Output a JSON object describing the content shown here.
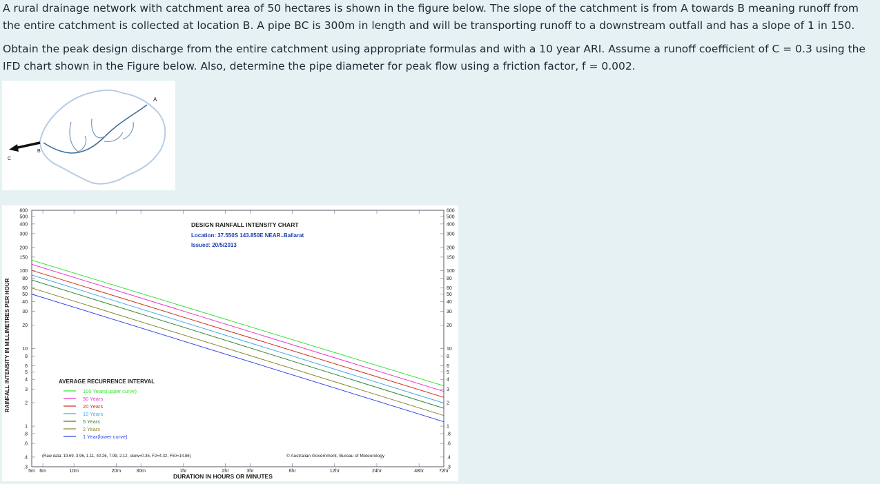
{
  "problem": {
    "paragraph1": "A rural drainage network with catchment area of 50 hectares is shown in the figure below. The slope of the catchment is from A towards B meaning runoff from the entire catchment is collected at location B. A pipe BC is 300m in length and will be transporting runoff to a downstream outfall and has a slope of 1 in 150.",
    "paragraph2": "Obtain the peak design discharge from the entire catchment using appropriate formulas and with a 10 year ARI. Assume a runoff coefficient of C = 0.3 using the IFD chart shown in the Figure below. Also, determine the pipe diameter for peak flow using a friction factor, f = 0.002."
  },
  "catchment_figure": {
    "label_a": "A",
    "label_b": "B",
    "label_c": "C"
  },
  "chart_data": {
    "type": "line",
    "title": "DESIGN RAINFALL INTENSITY CHART",
    "location": "Location: 37.550S  143.850E  NEAR..Ballarat",
    "issued": "Issued: 20/5/2013",
    "xlabel": "DURATION IN HOURS OR MINUTES",
    "ylabel": "RAINFALL INTENSITY IN MILLIMETRES PER HOUR",
    "y_scale": "log",
    "x_scale": "log",
    "ylim": [
      0.3,
      600
    ],
    "y_ticks": [
      "600",
      "500",
      "400",
      "300",
      "200",
      "150",
      "100",
      "80",
      "60",
      "50",
      "40",
      "30",
      "20",
      "10",
      "8",
      "6",
      "5",
      "4",
      "3",
      "2",
      "1",
      ".8",
      ".6",
      ".4",
      ".3"
    ],
    "x_ticks": [
      {
        "label": "5m",
        "minutes": 5
      },
      {
        "label": "6m",
        "minutes": 6
      },
      {
        "label": "10m",
        "minutes": 10
      },
      {
        "label": "20m",
        "minutes": 20
      },
      {
        "label": "30m",
        "minutes": 30
      },
      {
        "label": "1hr",
        "minutes": 60
      },
      {
        "label": "2hr",
        "minutes": 120
      },
      {
        "label": "3hr",
        "minutes": 180
      },
      {
        "label": "6hr",
        "minutes": 360
      },
      {
        "label": "12hr",
        "minutes": 720
      },
      {
        "label": "24hr",
        "minutes": 1440
      },
      {
        "label": "48hr",
        "minutes": 2880
      },
      {
        "label": "72hr",
        "minutes": 4320
      }
    ],
    "legend_title": "AVERAGE RECURRENCE INTERVAL",
    "series": [
      {
        "name": "100 Years(upper curve)",
        "color": "#33e333",
        "x_minutes": [
          5,
          4320
        ],
        "y": [
          137,
          3.3
        ]
      },
      {
        "name": "50 Years",
        "color": "#ee33cc",
        "x_minutes": [
          5,
          4320
        ],
        "y": [
          121,
          2.8
        ]
      },
      {
        "name": "20 Years",
        "color": "#cc3311",
        "x_minutes": [
          5,
          4320
        ],
        "y": [
          101,
          2.35
        ]
      },
      {
        "name": "10 Years",
        "color": "#44aaee",
        "x_minutes": [
          5,
          4320
        ],
        "y": [
          88,
          1.98
        ]
      },
      {
        "name": "5 Years",
        "color": "#338833",
        "x_minutes": [
          5,
          4320
        ],
        "y": [
          76,
          1.7
        ]
      },
      {
        "name": "2 Years",
        "color": "#888833",
        "x_minutes": [
          5,
          4320
        ],
        "y": [
          60,
          1.37
        ]
      },
      {
        "name": "1 Year(lower curve)",
        "color": "#3344ee",
        "x_minutes": [
          5,
          4320
        ],
        "y": [
          50,
          1.14
        ]
      }
    ],
    "raw_data_note": "(Raw data: 19.69, 3.96, 1.11, 40.26, 7.99, 2.12, skew=0.35, F2=4.32, F50=14.86)",
    "credit": "© Australian Government, Bureau of Meteorology",
    "grid": true
  }
}
